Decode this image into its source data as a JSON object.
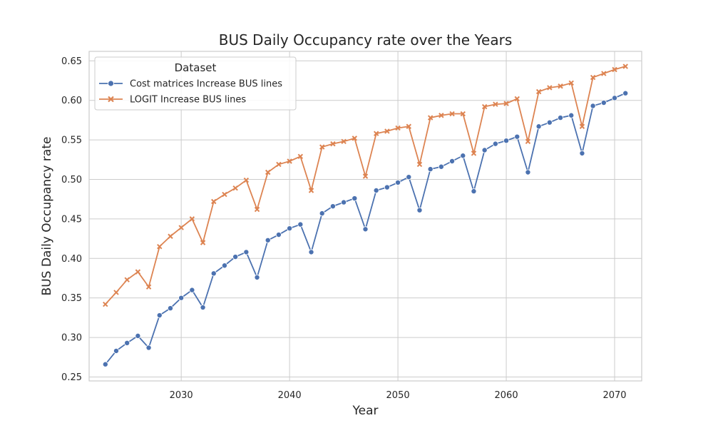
{
  "chart_data": {
    "type": "line",
    "title": "BUS Daily Occupancy rate over the Years",
    "xlabel": "Year",
    "ylabel": "BUS Daily Occupancy rate",
    "xlim": [
      2021.5,
      2072.5
    ],
    "ylim": [
      0.245,
      0.662
    ],
    "xticks": [
      "2030",
      "2040",
      "2050",
      "2060",
      "2070"
    ],
    "yticks": [
      "0.25",
      "0.30",
      "0.35",
      "0.40",
      "0.45",
      "0.50",
      "0.55",
      "0.60",
      "0.65"
    ],
    "grid": true,
    "legend": {
      "title": "Dataset",
      "placement": "top-left"
    },
    "x": [
      2023,
      2024,
      2025,
      2026,
      2027,
      2028,
      2029,
      2030,
      2031,
      2032,
      2033,
      2034,
      2035,
      2036,
      2037,
      2038,
      2039,
      2040,
      2041,
      2042,
      2043,
      2044,
      2045,
      2046,
      2047,
      2048,
      2049,
      2050,
      2051,
      2052,
      2053,
      2054,
      2055,
      2056,
      2057,
      2058,
      2059,
      2060,
      2061,
      2062,
      2063,
      2064,
      2065,
      2066,
      2067,
      2068,
      2069,
      2070,
      2071
    ],
    "series": [
      {
        "name": "Cost matrices Increase BUS lines",
        "color": "#4c72b0",
        "marker": "circle",
        "values": [
          0.266,
          0.283,
          0.293,
          0.302,
          0.287,
          0.328,
          0.337,
          0.35,
          0.36,
          0.338,
          0.381,
          0.391,
          0.402,
          0.408,
          0.376,
          0.423,
          0.43,
          0.438,
          0.443,
          0.408,
          0.457,
          0.466,
          0.471,
          0.476,
          0.437,
          0.486,
          0.49,
          0.496,
          0.503,
          0.461,
          0.513,
          0.516,
          0.523,
          0.53,
          0.485,
          0.537,
          0.545,
          0.549,
          0.554,
          0.509,
          0.567,
          0.572,
          0.578,
          0.581,
          0.533,
          0.593,
          0.597,
          0.603,
          0.609
        ]
      },
      {
        "name": "LOGIT Increase BUS lines",
        "color": "#dd8452",
        "marker": "x",
        "values": [
          0.342,
          0.357,
          0.373,
          0.383,
          0.364,
          0.415,
          0.428,
          0.439,
          0.45,
          0.42,
          0.472,
          0.481,
          0.489,
          0.499,
          0.462,
          0.509,
          0.519,
          0.523,
          0.529,
          0.486,
          0.541,
          0.545,
          0.548,
          0.552,
          0.504,
          0.558,
          0.561,
          0.565,
          0.567,
          0.519,
          0.578,
          0.581,
          0.583,
          0.583,
          0.533,
          0.592,
          0.595,
          0.596,
          0.602,
          0.548,
          0.611,
          0.616,
          0.618,
          0.622,
          0.567,
          0.629,
          0.634,
          0.639,
          0.643
        ]
      }
    ]
  }
}
